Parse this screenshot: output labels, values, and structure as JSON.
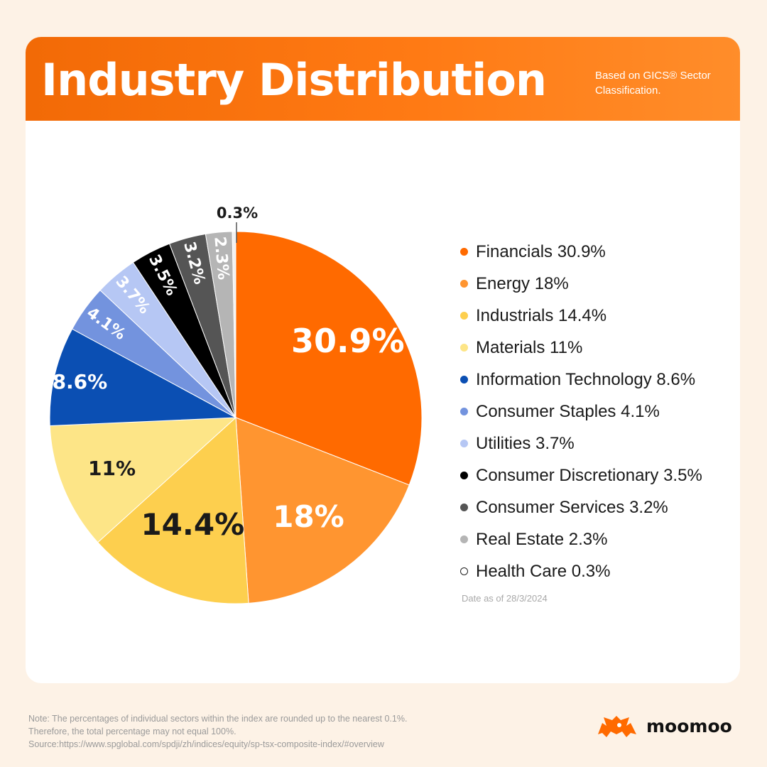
{
  "header": {
    "title": "Industry Distribution",
    "subtitle_line1": "Based on GICS® Sector",
    "subtitle_line2": "Classification."
  },
  "chart_data": {
    "type": "pie",
    "title": "Industry Distribution",
    "legend_position": "right",
    "slices": [
      {
        "label": "Financials",
        "value": 30.9,
        "display": "30.9%",
        "color": "#ff6a00",
        "label_color": "#ffffff"
      },
      {
        "label": "Energy",
        "value": 18,
        "display": "18%",
        "color": "#ff9530",
        "label_color": "#ffffff"
      },
      {
        "label": "Industrials",
        "value": 14.4,
        "display": "14.4%",
        "color": "#fdcf4e",
        "label_color": "#1a1a1a"
      },
      {
        "label": "Materials",
        "value": 11,
        "display": "11%",
        "color": "#fde587",
        "label_color": "#1a1a1a"
      },
      {
        "label": "Information Technology",
        "value": 8.6,
        "display": "8.6%",
        "color": "#0b4fb3",
        "label_color": "#ffffff"
      },
      {
        "label": "Consumer Staples",
        "value": 4.1,
        "display": "4.1%",
        "color": "#7393de",
        "label_color": "#ffffff"
      },
      {
        "label": "Utilities",
        "value": 3.7,
        "display": "3.7%",
        "color": "#b6c7f4",
        "label_color": "#ffffff"
      },
      {
        "label": "Consumer Discretionary",
        "value": 3.5,
        "display": "3.5%",
        "color": "#000000",
        "label_color": "#ffffff"
      },
      {
        "label": "Consumer Services",
        "value": 3.2,
        "display": "3.2%",
        "color": "#555555",
        "label_color": "#ffffff"
      },
      {
        "label": "Real Estate",
        "value": 2.3,
        "display": "2.3%",
        "color": "#b5b5b5",
        "label_color": "#ffffff"
      },
      {
        "label": "Health Care",
        "value": 0.3,
        "display": "0.3%",
        "color": "#f2f2f2",
        "label_color": "#1a1a1a"
      }
    ]
  },
  "legend": [
    {
      "text": "Financials 30.9%",
      "color": "#ff6a00",
      "outline": false
    },
    {
      "text": "Energy 18%",
      "color": "#ff9530",
      "outline": false
    },
    {
      "text": "Industrials 14.4%",
      "color": "#fdcf4e",
      "outline": false
    },
    {
      "text": "Materials 11%",
      "color": "#fde587",
      "outline": false
    },
    {
      "text": "Information Technology 8.6%",
      "color": "#0b4fb3",
      "outline": false
    },
    {
      "text": "Consumer Staples 4.1%",
      "color": "#7393de",
      "outline": false
    },
    {
      "text": "Utilities 3.7%",
      "color": "#b6c7f4",
      "outline": false
    },
    {
      "text": "Consumer Discretionary 3.5%",
      "color": "#000000",
      "outline": false
    },
    {
      "text": "Consumer Services 3.2%",
      "color": "#555555",
      "outline": false
    },
    {
      "text": "Real Estate 2.3%",
      "color": "#b5b5b5",
      "outline": false
    },
    {
      "text": "Health Care 0.3%",
      "color": "#ffffff",
      "outline": true
    }
  ],
  "date_note": "Date as of 28/3/2024",
  "footer": {
    "line1": "Note: The percentages of individual sectors within the index are rounded up to the nearest 0.1%.",
    "line2": "Therefore, the total percentage may not equal 100%.",
    "line3": "Source:https://www.spglobal.com/spdji/zh/indices/equity/sp-tsx-composite-index/#overview"
  },
  "brand": {
    "name": "moomoo",
    "logo_icon": "bull-logo-icon",
    "color": "#ff6a00"
  }
}
